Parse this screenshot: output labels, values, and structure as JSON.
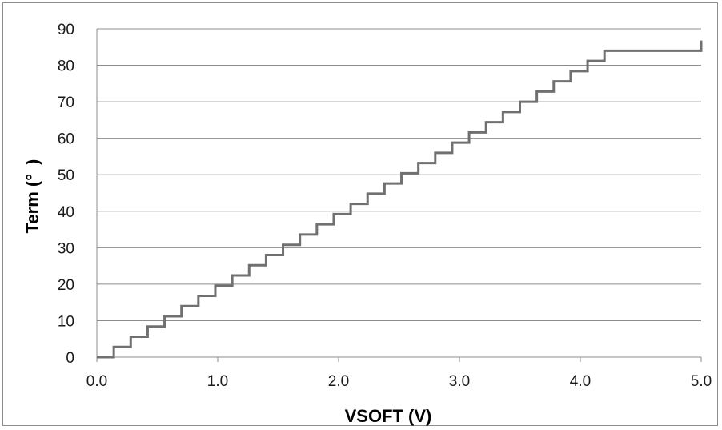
{
  "chart_data": {
    "type": "line",
    "title": "",
    "xlabel": "VSOFT (V)",
    "ylabel": "Term (° )",
    "xlim": [
      0.0,
      5.0
    ],
    "ylim": [
      0,
      90
    ],
    "x_ticks": [
      "0.0",
      "1.0",
      "2.0",
      "3.0",
      "4.0",
      "5.0"
    ],
    "y_ticks": [
      "0",
      "10",
      "20",
      "30",
      "40",
      "50",
      "60",
      "70",
      "80",
      "90"
    ],
    "grid": "horizontal",
    "legend": "none",
    "line_color": "#707070",
    "series": [
      {
        "step": "post",
        "x": [
          0.0,
          0.14,
          0.28,
          0.42,
          0.56,
          0.7,
          0.84,
          0.98,
          1.12,
          1.26,
          1.4,
          1.54,
          1.68,
          1.82,
          1.96,
          2.1,
          2.24,
          2.38,
          2.52,
          2.66,
          2.8,
          2.94,
          3.08,
          3.22,
          3.36,
          3.5,
          3.64,
          3.78,
          3.92,
          4.06,
          4.2,
          5.0
        ],
        "y": [
          0,
          2.8,
          5.6,
          8.4,
          11.2,
          14.0,
          16.8,
          19.6,
          22.4,
          25.2,
          28.0,
          30.8,
          33.6,
          36.4,
          39.2,
          42.0,
          44.8,
          47.6,
          50.4,
          53.2,
          56.0,
          58.8,
          61.6,
          64.4,
          67.2,
          70.0,
          72.8,
          75.6,
          78.4,
          81.2,
          84.0,
          86.8
        ]
      }
    ]
  }
}
